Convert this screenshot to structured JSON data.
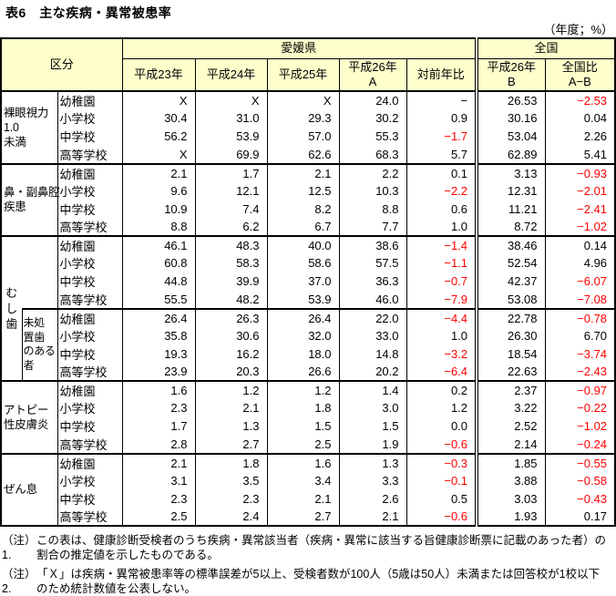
{
  "title": "表6　主な疾病・異常被患率",
  "unit_note": "（年度；%）",
  "colors": {
    "header_bg": "#FFFFCC",
    "negative_value": "#FF0000",
    "border": "#000000"
  },
  "table": {
    "header": {
      "kubun": "区分",
      "ehime": "愛媛県",
      "zenkoku": "全国",
      "h23": "平成23年",
      "h24": "平成24年",
      "h25": "平成25年",
      "h26a_1": "平成26年",
      "h26a_2": "A",
      "yoy": "対前年比",
      "h26b_1": "平成26年",
      "h26b_2": "B",
      "diff_1": "全国比",
      "diff_2": "A−B"
    },
    "groups": [
      {
        "name": "裸眼視力1.0未満",
        "label_lines": [
          "裸眼視力",
          "1.0",
          "未満"
        ],
        "rows": [
          {
            "school": "幼稚園",
            "values": [
              "X",
              "X",
              "X",
              "24.0",
              "−",
              "26.53",
              "−2.53"
            ]
          },
          {
            "school": "小学校",
            "values": [
              "30.4",
              "31.0",
              "29.3",
              "30.2",
              "0.9",
              "30.16",
              "0.04"
            ]
          },
          {
            "school": "中学校",
            "values": [
              "56.2",
              "53.9",
              "57.0",
              "55.3",
              "−1.7",
              "53.04",
              "2.26"
            ]
          },
          {
            "school": "高等学校",
            "values": [
              "X",
              "69.9",
              "62.6",
              "68.3",
              "5.7",
              "62.89",
              "5.41"
            ]
          }
        ]
      },
      {
        "name": "鼻・副鼻腔疾患",
        "label_lines": [
          "鼻・副鼻腔",
          "疾患"
        ],
        "rows": [
          {
            "school": "幼稚園",
            "values": [
              "2.1",
              "1.7",
              "2.1",
              "2.2",
              "0.1",
              "3.13",
              "−0.93"
            ]
          },
          {
            "school": "小学校",
            "values": [
              "9.6",
              "12.1",
              "12.5",
              "10.3",
              "−2.2",
              "12.31",
              "−2.01"
            ]
          },
          {
            "school": "中学校",
            "values": [
              "10.9",
              "7.4",
              "8.2",
              "8.8",
              "0.6",
              "11.21",
              "−2.41"
            ]
          },
          {
            "school": "高等学校",
            "values": [
              "8.8",
              "6.2",
              "6.7",
              "7.7",
              "1.0",
              "8.72",
              "−1.02"
            ]
          }
        ]
      },
      {
        "name": "むし歯",
        "vertical_label": [
          "む",
          "し",
          "歯"
        ],
        "rows": [
          {
            "school": "幼稚園",
            "values": [
              "46.1",
              "48.3",
              "40.0",
              "38.6",
              "−1.4",
              "38.46",
              "0.14"
            ]
          },
          {
            "school": "小学校",
            "values": [
              "60.8",
              "58.3",
              "58.6",
              "57.5",
              "−1.1",
              "52.54",
              "4.96"
            ]
          },
          {
            "school": "中学校",
            "values": [
              "44.8",
              "39.9",
              "37.0",
              "36.3",
              "−0.7",
              "42.37",
              "−6.07"
            ]
          },
          {
            "school": "高等学校",
            "values": [
              "55.5",
              "48.2",
              "53.9",
              "46.0",
              "−7.9",
              "53.08",
              "−7.08"
            ]
          }
        ],
        "subgroup": {
          "name": "未処置歯のある者",
          "label_lines": [
            "未処",
            "置歯",
            "のある",
            "者"
          ],
          "rows": [
            {
              "school": "幼稚園",
              "values": [
                "26.4",
                "26.3",
                "26.4",
                "22.0",
                "−4.4",
                "22.78",
                "−0.78"
              ]
            },
            {
              "school": "小学校",
              "values": [
                "35.8",
                "30.6",
                "32.0",
                "33.0",
                "1.0",
                "26.30",
                "6.70"
              ]
            },
            {
              "school": "中学校",
              "values": [
                "19.3",
                "16.2",
                "18.0",
                "14.8",
                "−3.2",
                "18.54",
                "−3.74"
              ]
            },
            {
              "school": "高等学校",
              "values": [
                "23.9",
                "20.3",
                "26.6",
                "20.2",
                "−6.4",
                "22.63",
                "−2.43"
              ]
            }
          ]
        }
      },
      {
        "name": "アトピー性皮膚炎",
        "label_lines": [
          "アトピー",
          "性皮膚炎"
        ],
        "rows": [
          {
            "school": "幼稚園",
            "values": [
              "1.6",
              "1.2",
              "1.2",
              "1.4",
              "0.2",
              "2.37",
              "−0.97"
            ]
          },
          {
            "school": "小学校",
            "values": [
              "2.3",
              "2.1",
              "1.8",
              "3.0",
              "1.2",
              "3.22",
              "−0.22"
            ]
          },
          {
            "school": "中学校",
            "values": [
              "1.7",
              "1.3",
              "1.5",
              "1.5",
              "0.0",
              "2.52",
              "−1.02"
            ]
          },
          {
            "school": "高等学校",
            "values": [
              "2.8",
              "2.7",
              "2.5",
              "1.9",
              "−0.6",
              "2.14",
              "−0.24"
            ]
          }
        ]
      },
      {
        "name": "ぜん息",
        "label_lines": [
          "ぜん息"
        ],
        "rows": [
          {
            "school": "幼稚園",
            "values": [
              "2.1",
              "1.8",
              "1.6",
              "1.3",
              "−0.3",
              "1.85",
              "−0.55"
            ]
          },
          {
            "school": "小学校",
            "values": [
              "3.1",
              "3.5",
              "3.4",
              "3.3",
              "−0.1",
              "3.88",
              "−0.58"
            ]
          },
          {
            "school": "中学校",
            "values": [
              "2.3",
              "2.3",
              "2.1",
              "2.6",
              "0.5",
              "3.03",
              "−0.43"
            ]
          },
          {
            "school": "高等学校",
            "values": [
              "2.5",
              "2.4",
              "2.7",
              "2.1",
              "−0.6",
              "1.93",
              "0.17"
            ]
          }
        ]
      }
    ]
  },
  "notes": [
    {
      "prefix": "（注）1.",
      "lines": [
        "この表は、健康診断受検者のうち疾病・異常該当者（疾病・異常に該当する旨健康診断票に記載のあった者）の",
        "割合の推定値を示したものである。"
      ]
    },
    {
      "prefix": "（注）2.",
      "lines": [
        "「Ｘ」は疾病・異常被患率等の標準誤差が5以上、受検者数が100人（5歳は50人）未満または回答校が1校以下",
        "のため統計数値を公表しない。"
      ]
    }
  ]
}
